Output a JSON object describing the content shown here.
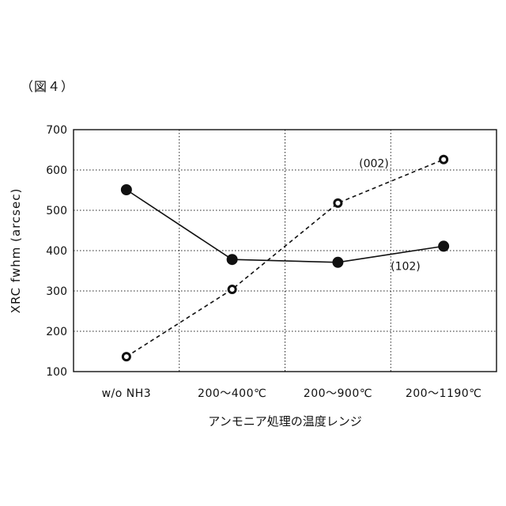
{
  "figure_label": "（図４）",
  "chart_data": {
    "type": "line",
    "categories": [
      "w/o NH3",
      "200～400℃",
      "200～900℃",
      "200～1190℃"
    ],
    "series": [
      {
        "name": "(002)",
        "values": [
          137,
          304,
          518,
          626
        ],
        "marker": "open-circle",
        "line_style": "dashed"
      },
      {
        "name": "(102)",
        "values": [
          551,
          378,
          371,
          411
        ],
        "marker": "filled-circle",
        "line_style": "solid"
      }
    ],
    "title": "",
    "xlabel": "アンモニア処理の温度レンジ",
    "ylabel": "XRC fwhm (arcsec)",
    "ylim": [
      100,
      700
    ],
    "yticks": [
      100,
      200,
      300,
      400,
      500,
      600,
      700
    ],
    "grid": true
  }
}
